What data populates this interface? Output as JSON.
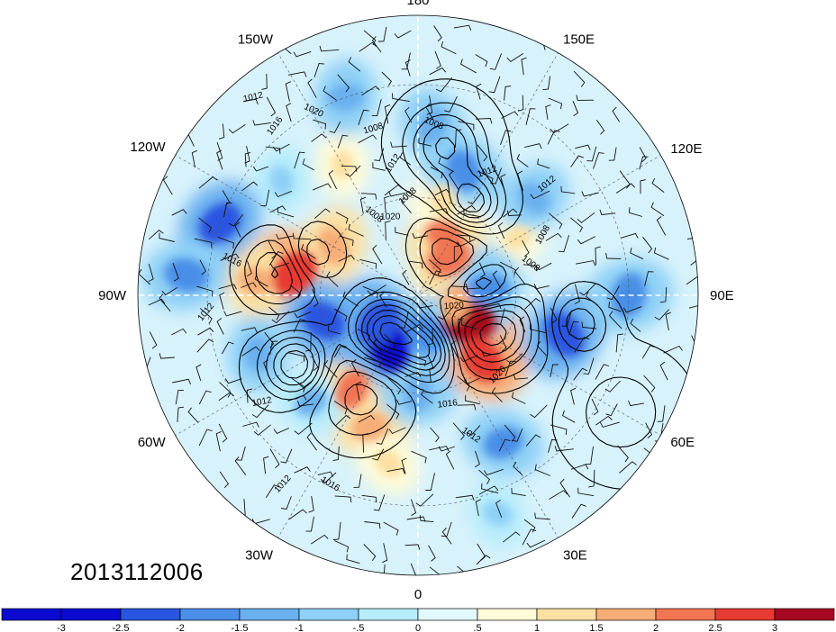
{
  "figure": {
    "date_stamp": "2013112006",
    "projection": "north polar stereographic",
    "longitude_labels": [
      {
        "id": "lon-90e",
        "text": "90E",
        "lon": 90
      },
      {
        "id": "lon-60e",
        "text": "60E",
        "lon": 60
      },
      {
        "id": "lon-30e",
        "text": "30E",
        "lon": 30
      },
      {
        "id": "lon-0",
        "text": "0",
        "lon": 0
      },
      {
        "id": "lon-30w",
        "text": "30W",
        "lon": -30
      },
      {
        "id": "lon-60w",
        "text": "60W",
        "lon": -60
      },
      {
        "id": "lon-90w",
        "text": "90W",
        "lon": -90
      },
      {
        "id": "lon-120w",
        "text": "120W",
        "lon": -120
      },
      {
        "id": "lon-150w",
        "text": "150W",
        "lon": -150
      },
      {
        "id": "lon-180",
        "text": "180",
        "lon": 180
      },
      {
        "id": "lon-150e",
        "text": "150E",
        "lon": 150
      },
      {
        "id": "lon-120e",
        "text": "120E",
        "lon": 120
      }
    ],
    "contour_labels": [
      "1008",
      "1012",
      "1016",
      "1020"
    ]
  },
  "colorbar": {
    "tick_labels": [
      "-3",
      "-2.5",
      "-2",
      "-1.5",
      "-1",
      "-.5",
      "0",
      ".5",
      "1",
      "1.5",
      "2",
      "2.5",
      "3"
    ],
    "colors": [
      "#0a0ad2",
      "#2a55e0",
      "#4a8fe8",
      "#6ab0ef",
      "#8ed0f6",
      "#b6ecfb",
      "#e1f9fd",
      "#fffbd8",
      "#fde0a2",
      "#f7ad77",
      "#f27553",
      "#e63a33",
      "#a5081f"
    ]
  },
  "map_fields": {
    "anomaly_cells": [
      {
        "lon": 62,
        "lat": 72,
        "value": 2.9
      },
      {
        "lon": 45,
        "lat": 62,
        "value": 2.4
      },
      {
        "lon": 78,
        "lat": 78,
        "value": 1.6
      },
      {
        "lon": 140,
        "lat": 75,
        "value": 2.2
      },
      {
        "lon": 155,
        "lat": 70,
        "value": 1.8
      },
      {
        "lon": 165,
        "lat": 60,
        "value": 1.2
      },
      {
        "lon": -100,
        "lat": 52,
        "value": 2.6
      },
      {
        "lon": -95,
        "lat": 42,
        "value": 1.5
      },
      {
        "lon": -120,
        "lat": 60,
        "value": 1.7
      },
      {
        "lon": -35,
        "lat": 55,
        "value": 1.8
      },
      {
        "lon": -20,
        "lat": 48,
        "value": 1.6
      },
      {
        "lon": -10,
        "lat": 40,
        "value": 1.1
      },
      {
        "lon": -150,
        "lat": 45,
        "value": 0.9
      },
      {
        "lon": 120,
        "lat": 55,
        "value": 0.8
      },
      {
        "lon": 10,
        "lat": 78,
        "value": -2.2
      },
      {
        "lon": -30,
        "lat": 72,
        "value": -2.8
      },
      {
        "lon": -55,
        "lat": 75,
        "value": -2.6
      },
      {
        "lon": 95,
        "lat": 68,
        "value": -2.0
      },
      {
        "lon": 75,
        "lat": 45,
        "value": -2.4
      },
      {
        "lon": 90,
        "lat": 30,
        "value": -2.2
      },
      {
        "lon": 30,
        "lat": 40,
        "value": -1.8
      },
      {
        "lon": -75,
        "lat": 60,
        "value": -2.3
      },
      {
        "lon": -70,
        "lat": 40,
        "value": -1.5
      },
      {
        "lon": -110,
        "lat": 30,
        "value": -2.3
      },
      {
        "lon": -95,
        "lat": 25,
        "value": -2.1
      },
      {
        "lon": 160,
        "lat": 50,
        "value": -2.0
      },
      {
        "lon": 175,
        "lat": 40,
        "value": -1.6
      },
      {
        "lon": -160,
        "lat": 30,
        "value": -1.5
      },
      {
        "lon": 130,
        "lat": 45,
        "value": -1.4
      },
      {
        "lon": 0,
        "lat": 60,
        "value": -1.6
      },
      {
        "lon": -45,
        "lat": 45,
        "value": -1.3
      },
      {
        "lon": 20,
        "lat": 25,
        "value": -1.0
      },
      {
        "lon": -130,
        "lat": 38,
        "value": -1.0
      }
    ],
    "pressure_centers": [
      {
        "lon": 65,
        "lat": 65,
        "value": 1040,
        "spread": 9
      },
      {
        "lon": 145,
        "lat": 72,
        "value": 1028,
        "spread": 8
      },
      {
        "lon": -100,
        "lat": 48,
        "value": 1030,
        "spread": 7
      },
      {
        "lon": -30,
        "lat": 55,
        "value": 1026,
        "spread": 10
      },
      {
        "lon": 150,
        "lat": 58,
        "value": 990,
        "spread": 6
      },
      {
        "lon": -40,
        "lat": 75,
        "value": 985,
        "spread": 7
      },
      {
        "lon": 95,
        "lat": 70,
        "value": 996,
        "spread": 6
      },
      {
        "lon": 10,
        "lat": 72,
        "value": 992,
        "spread": 6
      },
      {
        "lon": -110,
        "lat": 55,
        "value": 1000,
        "spread": 5
      },
      {
        "lon": 170,
        "lat": 45,
        "value": 995,
        "spread": 7
      },
      {
        "lon": -60,
        "lat": 48,
        "value": 990,
        "spread": 6
      },
      {
        "lon": 80,
        "lat": 42,
        "value": 1000,
        "spread": 5
      },
      {
        "lon": 60,
        "lat": 25,
        "value": 1005,
        "spread": 8
      }
    ]
  }
}
